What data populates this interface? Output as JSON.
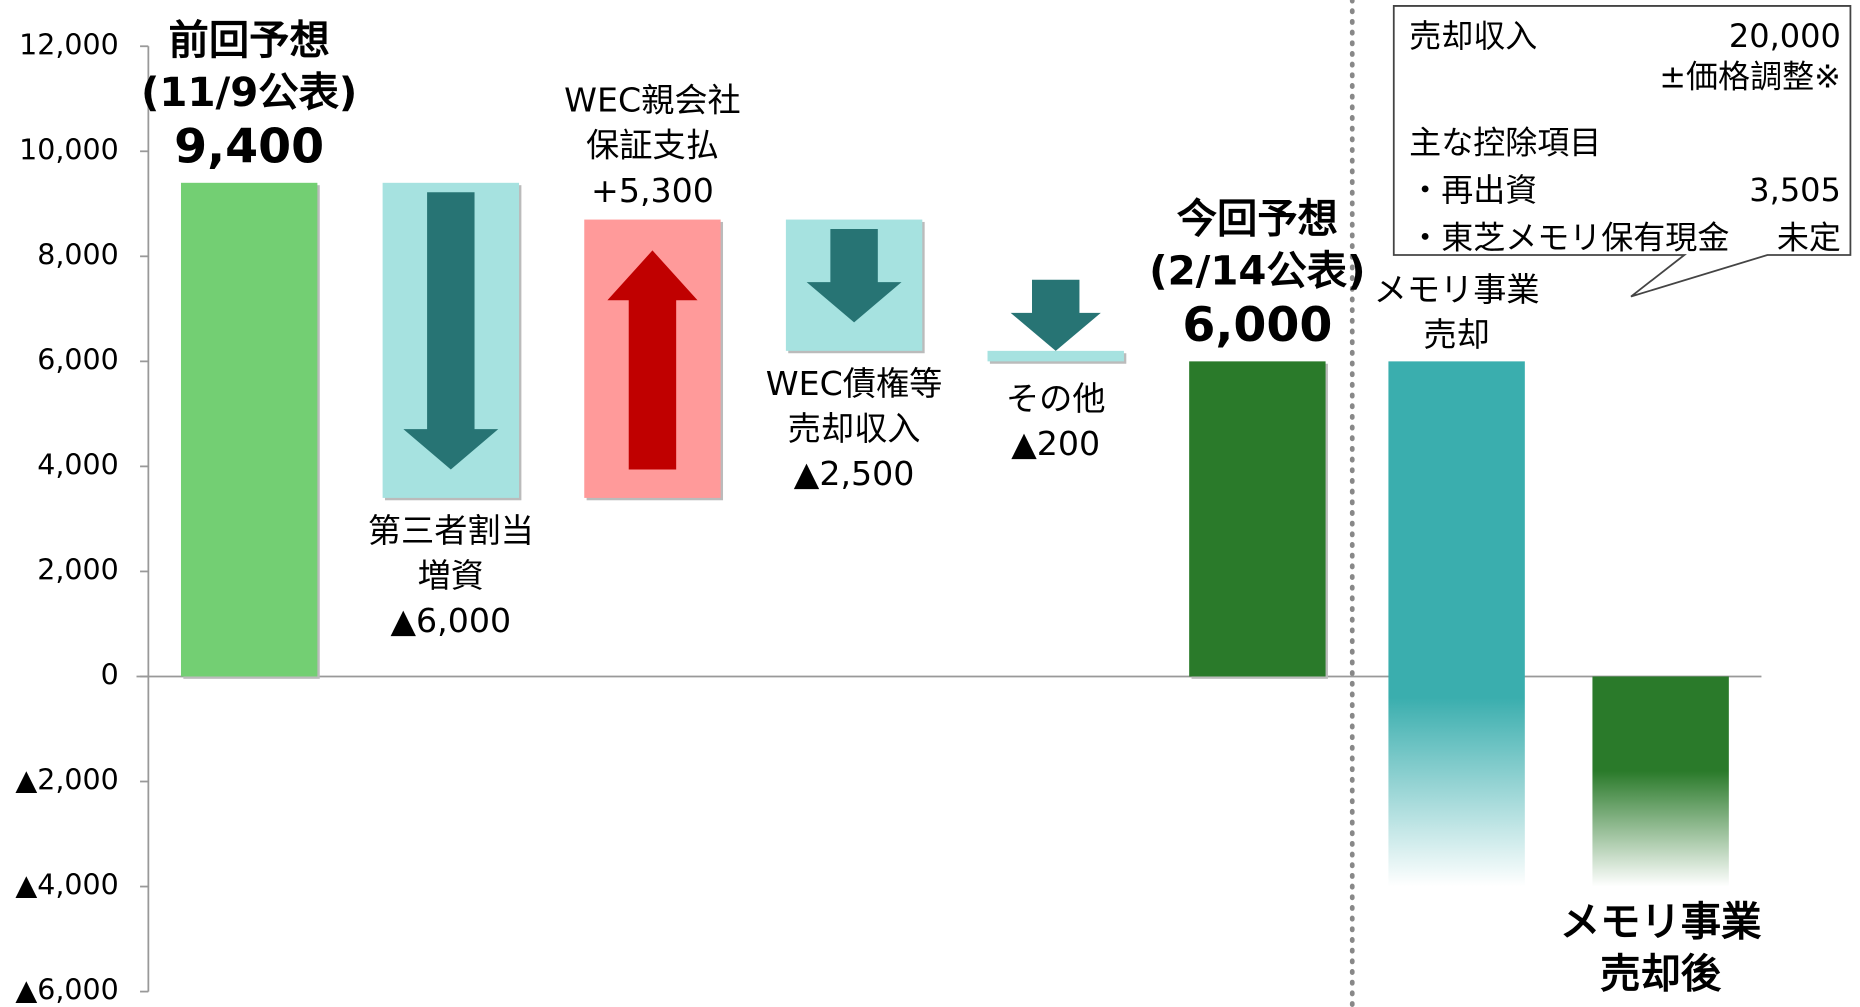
{
  "chart_data": {
    "type": "waterfall",
    "categories": [
      [
        "前回予想",
        "(11/9公表)"
      ],
      [
        "第三者割当",
        "増資"
      ],
      [
        "WEC親会社",
        "保証支払"
      ],
      [
        "WEC債権等",
        "売却収入"
      ],
      [
        "その他"
      ],
      [
        "今回予想",
        "(2/14公表)"
      ],
      [
        "メモリ事業",
        "売却"
      ],
      [
        "メモリ事業",
        "売却後"
      ]
    ],
    "values": [
      9400,
      -6000,
      5300,
      -2500,
      -200,
      6000,
      -10000,
      -4000
    ],
    "value_labels": [
      "9,400",
      "▲6,000",
      "+5,300",
      "▲2,500",
      "▲200",
      "6,000",
      null,
      null
    ],
    "kinds": [
      "total",
      "delta",
      "delta",
      "delta",
      "delta",
      "total",
      "delta",
      "total"
    ],
    "colors": [
      "#73cf73",
      "#a6e2e0",
      "#ff9a9a",
      "#a6e2e0",
      "#a6e2e0",
      "#2a7a2a",
      "#3aaeae",
      "#2a7a2a"
    ],
    "arrow_colors": [
      null,
      "#277474",
      "#c00000",
      "#277474",
      "#277474",
      null,
      null,
      null
    ],
    "label_positions": [
      "above",
      "below",
      "above",
      "below",
      "below",
      "above",
      "above",
      "below"
    ],
    "faded": [
      false,
      false,
      false,
      false,
      false,
      false,
      true,
      true
    ],
    "ylim": [
      -6000,
      12000
    ],
    "yticks": [
      {
        "value": -6000,
        "label": "▲6,000"
      },
      {
        "value": -4000,
        "label": "▲4,000"
      },
      {
        "value": -2000,
        "label": "▲2,000"
      },
      0,
      {
        "value": 2000,
        "label": "2,000"
      },
      {
        "value": 4000,
        "label": "4,000"
      },
      {
        "value": 6000,
        "label": "6,000"
      },
      {
        "value": 8000,
        "label": "8,000"
      },
      {
        "value": 10000,
        "label": "10,000"
      },
      {
        "value": 12000,
        "label": "12,000"
      }
    ],
    "note": [
      {
        "left": "売却収入",
        "right": "20,000"
      },
      {
        "right": "±価格調整※"
      },
      {
        "left": "主な控除項目"
      },
      {
        "left": "・再出資",
        "right": "3,505"
      },
      {
        "left": "・東芝メモリ保有現金",
        "right": "未定"
      }
    ]
  }
}
